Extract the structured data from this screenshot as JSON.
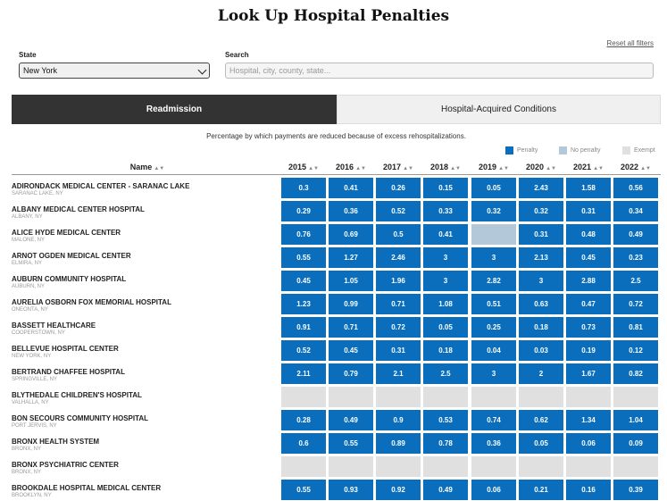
{
  "title": "Look Up Hospital Penalties",
  "reset_label": "Reset all filters",
  "filters": {
    "state_label": "State",
    "state_value": "New York",
    "search_label": "Search",
    "search_placeholder": "Hospital, city, county, state..."
  },
  "tabs": [
    {
      "label": "Readmission",
      "active": true
    },
    {
      "label": "Hospital-Acquired Conditions",
      "active": false
    }
  ],
  "subtitle": "Percentage by which payments are reduced because of excess rehospitalizations.",
  "legend": [
    {
      "label": "Penalty",
      "color": "#0a6ebd"
    },
    {
      "label": "No penalty",
      "color": "#b3c9da"
    },
    {
      "label": "Exempt",
      "color": "#e0e0e0"
    }
  ],
  "columns": {
    "name": "Name",
    "years": [
      "2015",
      "2016",
      "2017",
      "2018",
      "2019",
      "2020",
      "2021",
      "2022"
    ]
  },
  "rows": [
    {
      "name": "ADIRONDACK MEDICAL CENTER - SARANAC LAKE",
      "location": "SARANAC LAKE, NY",
      "values": [
        "0.3",
        "0.41",
        "0.26",
        "0.15",
        "0.05",
        "2.43",
        "1.58",
        "0.56"
      ]
    },
    {
      "name": "ALBANY MEDICAL CENTER HOSPITAL",
      "location": "ALBANY, NY",
      "values": [
        "0.29",
        "0.36",
        "0.52",
        "0.33",
        "0.32",
        "0.32",
        "0.31",
        "0.34"
      ]
    },
    {
      "name": "ALICE HYDE MEDICAL CENTER",
      "location": "MALONE, NY",
      "values": [
        "0.76",
        "0.69",
        "0.5",
        "0.41",
        "",
        "0.31",
        "0.48",
        "0.49"
      ],
      "status": [
        "p",
        "p",
        "p",
        "p",
        "n",
        "p",
        "p",
        "p"
      ]
    },
    {
      "name": "ARNOT OGDEN MEDICAL CENTER",
      "location": "ELMIRA, NY",
      "values": [
        "0.55",
        "1.27",
        "2.46",
        "3",
        "3",
        "2.13",
        "0.45",
        "0.23"
      ]
    },
    {
      "name": "AUBURN COMMUNITY HOSPITAL",
      "location": "AUBURN, NY",
      "values": [
        "0.45",
        "1.05",
        "1.96",
        "3",
        "2.82",
        "3",
        "2.88",
        "2.5"
      ]
    },
    {
      "name": "AURELIA OSBORN FOX MEMORIAL HOSPITAL",
      "location": "ONEONTA, NY",
      "values": [
        "1.23",
        "0.99",
        "0.71",
        "1.08",
        "0.51",
        "0.63",
        "0.47",
        "0.72"
      ]
    },
    {
      "name": "BASSETT HEALTHCARE",
      "location": "COOPERSTOWN, NY",
      "values": [
        "0.91",
        "0.71",
        "0.72",
        "0.05",
        "0.25",
        "0.18",
        "0.73",
        "0.81"
      ]
    },
    {
      "name": "BELLEVUE HOSPITAL CENTER",
      "location": "NEW YORK, NY",
      "values": [
        "0.52",
        "0.45",
        "0.31",
        "0.18",
        "0.04",
        "0.03",
        "0.19",
        "0.12"
      ]
    },
    {
      "name": "BERTRAND CHAFFEE HOSPITAL",
      "location": "SPRINGVILLE, NY",
      "values": [
        "2.11",
        "0.79",
        "2.1",
        "2.5",
        "3",
        "2",
        "1.67",
        "0.82"
      ]
    },
    {
      "name": "BLYTHEDALE CHILDREN'S HOSPITAL",
      "location": "VALHALLA, NY",
      "values": [
        "",
        "",
        "",
        "",
        "",
        "",
        "",
        ""
      ],
      "status": [
        "e",
        "e",
        "e",
        "e",
        "e",
        "e",
        "e",
        "e"
      ]
    },
    {
      "name": "BON SECOURS COMMUNITY HOSPITAL",
      "location": "PORT JERVIS, NY",
      "values": [
        "0.28",
        "0.49",
        "0.9",
        "0.53",
        "0.74",
        "0.62",
        "1.34",
        "1.04"
      ]
    },
    {
      "name": "BRONX HEALTH SYSTEM",
      "location": "BRONX, NY",
      "values": [
        "0.6",
        "0.55",
        "0.89",
        "0.78",
        "0.36",
        "0.05",
        "0.06",
        "0.09"
      ]
    },
    {
      "name": "BRONX PSYCHIATRIC CENTER",
      "location": "BRONX, NY",
      "values": [
        "",
        "",
        "",
        "",
        "",
        "",
        "",
        ""
      ],
      "status": [
        "e",
        "e",
        "e",
        "e",
        "e",
        "e",
        "e",
        "e"
      ]
    },
    {
      "name": "BROOKDALE HOSPITAL MEDICAL CENTER",
      "location": "BROOKLYN, NY",
      "values": [
        "0.55",
        "0.93",
        "0.92",
        "0.49",
        "0.06",
        "0.21",
        "0.16",
        "0.39"
      ]
    }
  ]
}
